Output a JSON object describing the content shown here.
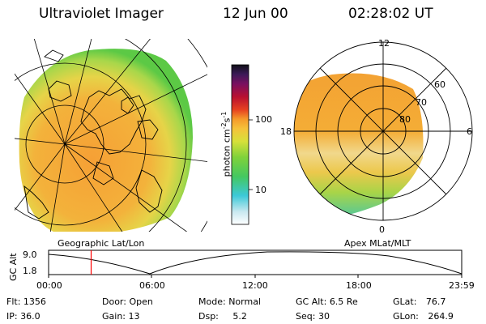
{
  "header": {
    "title": "Ultraviolet Imager",
    "date": "12 Jun 00",
    "time": "02:28:02 UT"
  },
  "left_panel": {
    "caption": "Geographic Lat/Lon"
  },
  "colorbar": {
    "unit_label": "photon cm",
    "unit_exp1": "-2",
    "unit_mid": "s",
    "unit_exp2": "-1",
    "tick_100": "100",
    "tick_10": "10"
  },
  "right_panel": {
    "caption": "Apex MLat/MLT",
    "mlt_top": "12",
    "mlt_left": "18",
    "mlt_right": "6",
    "mlt_bottom": "0",
    "lat_60": "60",
    "lat_70": "70",
    "lat_80": "80"
  },
  "altitude_plot": {
    "ylabel": "GC Alt",
    "y_top": "9.0",
    "y_bottom": "1.8",
    "x_ticks": [
      "00:00",
      "06:00",
      "12:00",
      "18:00",
      "23:59"
    ],
    "current_time_fraction": 0.103
  },
  "status": {
    "flt_label": "Flt:",
    "flt_value": "1356",
    "ip_label": "IP:",
    "ip_value": "36.0",
    "door_label": "Door:",
    "door_value": "Open",
    "gain_label": "Gain:",
    "gain_value": "13",
    "mode_label": "Mode:",
    "mode_value": "Normal",
    "dsp_label": "Dsp:",
    "dsp_value": "5.2",
    "gcalt_label": "GC Alt:",
    "gcalt_value": "6.5 Re",
    "seq_label": "Seq:",
    "seq_value": "30",
    "glat_label": "GLat:",
    "glat_value": "76.7",
    "glon_label": "GLon:",
    "glon_value": "264.9"
  },
  "colors": {
    "background": "#ffffff",
    "marker": "#ff0000",
    "aurora_orange": "#f6a733",
    "aurora_yellow": "#e8d64a",
    "aurora_green": "#66cc44"
  }
}
